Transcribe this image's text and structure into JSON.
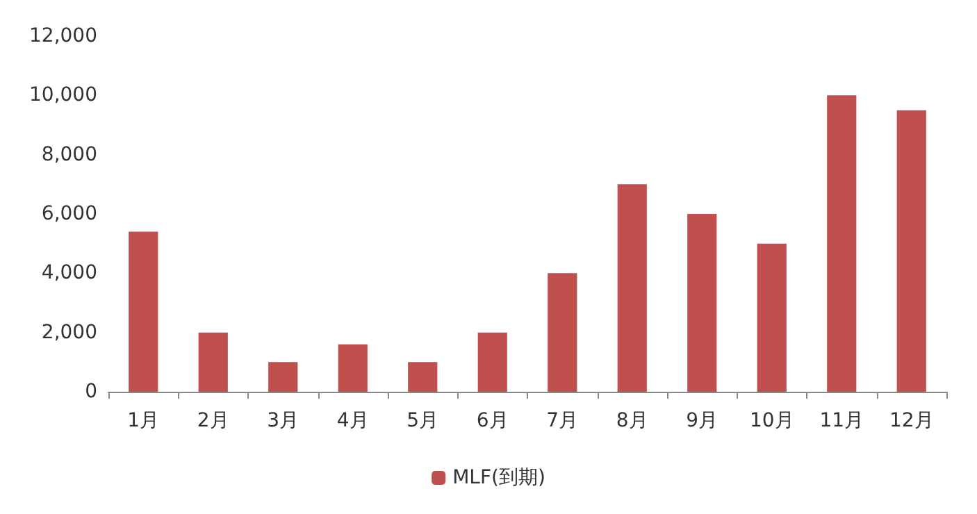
{
  "chart_data": {
    "type": "bar",
    "categories": [
      "1月",
      "2月",
      "3月",
      "4月",
      "5月",
      "6月",
      "7月",
      "8月",
      "9月",
      "10月",
      "11月",
      "12月"
    ],
    "series": [
      {
        "name": "MLF(到期)",
        "color": "#c0504d",
        "values": [
          5400,
          2000,
          1000,
          1600,
          1000,
          2000,
          4000,
          7000,
          6000,
          5000,
          10000,
          9500
        ]
      }
    ],
    "ylim": [
      0,
      12000
    ],
    "yticks": [
      {
        "value": 0,
        "label": "0"
      },
      {
        "value": 2000,
        "label": "2,000"
      },
      {
        "value": 4000,
        "label": "4,000"
      },
      {
        "value": 6000,
        "label": "6,000"
      },
      {
        "value": 8000,
        "label": "8,000"
      },
      {
        "value": 10000,
        "label": "10,000"
      },
      {
        "value": 12000,
        "label": "12,000"
      }
    ],
    "grid": false,
    "legend": "bottom"
  }
}
